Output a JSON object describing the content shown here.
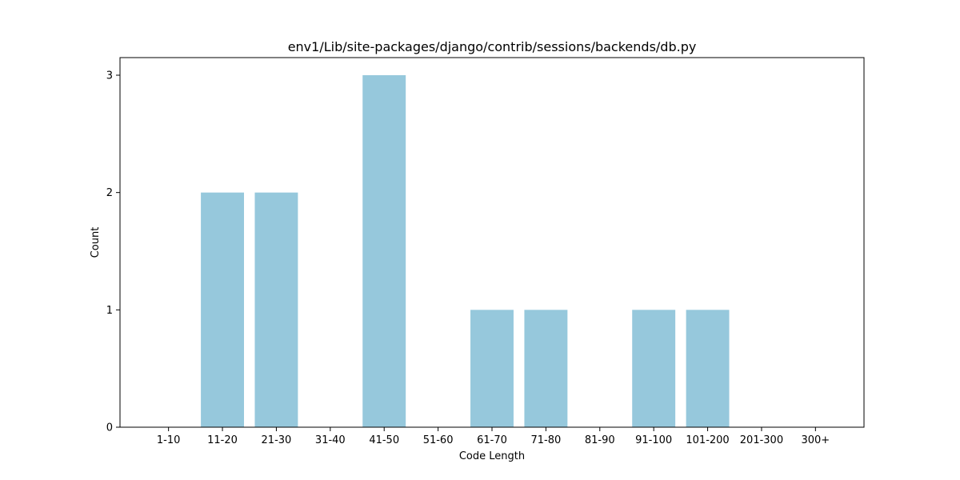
{
  "chart_data": {
    "type": "bar",
    "title": "env1/Lib/site-packages/django/contrib/sessions/backends/db.py",
    "xlabel": "Code Length",
    "ylabel": "Count",
    "categories": [
      "1-10",
      "11-20",
      "21-30",
      "31-40",
      "41-50",
      "51-60",
      "61-70",
      "71-80",
      "81-90",
      "91-100",
      "101-200",
      "201-300",
      "300+"
    ],
    "values": [
      0,
      2,
      2,
      0,
      3,
      0,
      1,
      1,
      0,
      1,
      1,
      0,
      0
    ],
    "ylim": [
      0,
      3.15
    ],
    "yticks": [
      "0",
      "1",
      "2",
      "3"
    ],
    "bar_color": "#96c8dc",
    "grid": false,
    "legend": "none"
  }
}
